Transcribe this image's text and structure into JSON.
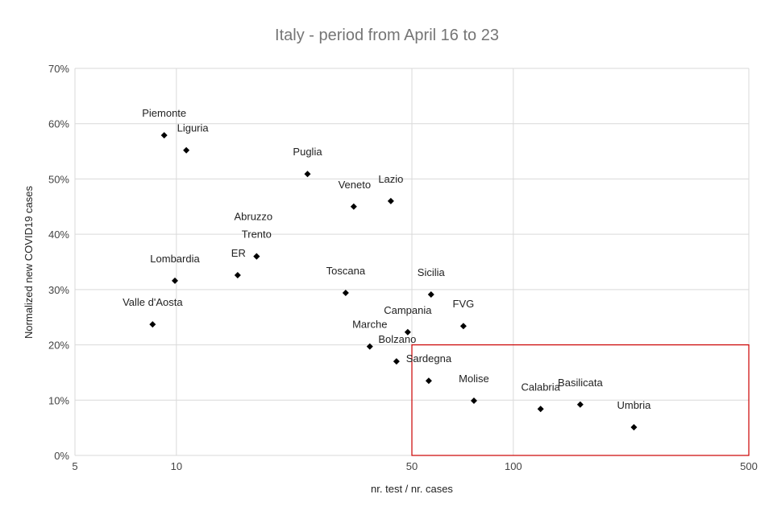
{
  "chart_data": {
    "type": "scatter",
    "title": "Italy - period from April 16 to 23",
    "xlabel": "nr. test / nr. cases",
    "ylabel": "Normalized new COVID19 cases",
    "xscale": "log",
    "xlim": [
      5,
      500
    ],
    "ylim": [
      0,
      70
    ],
    "xticks": [
      5,
      10,
      50,
      100,
      500
    ],
    "xtick_labels": [
      "5",
      "10",
      "50",
      "100",
      "500"
    ],
    "yticks": [
      0,
      10,
      20,
      30,
      40,
      50,
      60,
      70
    ],
    "ytick_labels": [
      "0%",
      "10%",
      "20%",
      "30%",
      "40%",
      "50%",
      "60%",
      "70%"
    ],
    "grid": true,
    "marker_color": "#000000",
    "highlight_box": {
      "x": [
        50,
        500
      ],
      "y": [
        0,
        20
      ],
      "color": "#cc0000"
    },
    "points": [
      {
        "label": "Piemonte",
        "x": 9.2,
        "y": 57.9
      },
      {
        "label": "Liguria",
        "x": 10.7,
        "y": 55.2
      },
      {
        "label": "Puglia",
        "x": 24.5,
        "y": 50.9
      },
      {
        "label": "Veneto",
        "x": 33.6,
        "y": 45.0
      },
      {
        "label": "Lazio",
        "x": 43.3,
        "y": 46.0
      },
      {
        "label": "Abruzzo",
        "x": 17.3,
        "y": 36.0
      },
      {
        "label": "Trento",
        "x": 17.3,
        "y": 36.0
      },
      {
        "label": "ER",
        "x": 15.2,
        "y": 32.6
      },
      {
        "label": "Lombardia",
        "x": 9.9,
        "y": 31.6
      },
      {
        "label": "Valle d'Aosta",
        "x": 8.5,
        "y": 23.7
      },
      {
        "label": "Toscana",
        "x": 31.8,
        "y": 29.4
      },
      {
        "label": "Sicilia",
        "x": 57,
        "y": 29.1
      },
      {
        "label": "Campania",
        "x": 48.6,
        "y": 22.3
      },
      {
        "label": "FVG",
        "x": 71.1,
        "y": 23.4
      },
      {
        "label": "Marche",
        "x": 37.5,
        "y": 19.7
      },
      {
        "label": "Bolzano",
        "x": 45,
        "y": 17.0
      },
      {
        "label": "Sardegna",
        "x": 56.1,
        "y": 13.5
      },
      {
        "label": "Molise",
        "x": 76.4,
        "y": 9.9
      },
      {
        "label": "Calabria",
        "x": 120.5,
        "y": 8.4
      },
      {
        "label": "Basilicata",
        "x": 158,
        "y": 9.2
      },
      {
        "label": "Umbria",
        "x": 228,
        "y": 5.1
      }
    ]
  }
}
